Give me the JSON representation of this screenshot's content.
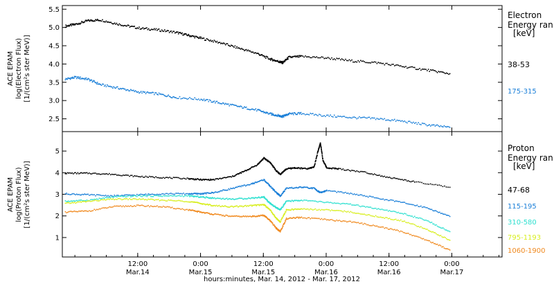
{
  "xaxis": {
    "label": "hours:minutes, Mar. 14, 2012 - Mar. 17, 2012",
    "range": [
      -0.1,
      3.4
    ],
    "ticks": [
      {
        "x": 0.5,
        "time": "12:00",
        "date": "Mar.14"
      },
      {
        "x": 1.0,
        "time": "0:00",
        "date": "Mar.15"
      },
      {
        "x": 1.5,
        "time": "12:00",
        "date": "Mar.15"
      },
      {
        "x": 2.0,
        "time": "0:00",
        "date": "Mar.16"
      },
      {
        "x": 2.5,
        "time": "12:00",
        "date": "Mar.16"
      },
      {
        "x": 3.0,
        "time": "0:00",
        "date": "Mar.17"
      }
    ]
  },
  "chart_data": [
    {
      "type": "scatter",
      "title": "",
      "ylabel_lines": [
        "ACE EPAM",
        "log(Electron Flux)",
        "[1/(cm²s ster MeV)]"
      ],
      "ylim": [
        2.15,
        5.6
      ],
      "yticks": [
        "2.5",
        "3.0",
        "3.5",
        "4.0",
        "4.5",
        "5.0",
        "5.5"
      ],
      "legend": {
        "title_lines": [
          "Electron",
          "Energy ran",
          "[keV]"
        ],
        "placement": "right"
      },
      "series": [
        {
          "name": "38-53",
          "color": "#000000",
          "x": [
            -0.08,
            0.0,
            0.1,
            0.2,
            0.35,
            0.5,
            0.65,
            0.8,
            0.9,
            1.0,
            1.15,
            1.3,
            1.45,
            1.55,
            1.62,
            1.65,
            1.7,
            1.8,
            2.0,
            2.2,
            2.4,
            2.6,
            2.8,
            2.98
          ],
          "values": [
            5.05,
            5.1,
            5.2,
            5.22,
            5.1,
            5.0,
            4.95,
            4.88,
            4.8,
            4.72,
            4.6,
            4.45,
            4.3,
            4.15,
            4.08,
            4.05,
            4.2,
            4.22,
            4.18,
            4.1,
            4.05,
            3.95,
            3.85,
            3.75
          ]
        },
        {
          "name": "175-315",
          "color": "#1a7fd8",
          "x": [
            -0.08,
            0.0,
            0.1,
            0.2,
            0.35,
            0.5,
            0.65,
            0.8,
            1.0,
            1.15,
            1.3,
            1.45,
            1.55,
            1.62,
            1.65,
            1.7,
            1.8,
            2.0,
            2.2,
            2.4,
            2.6,
            2.8,
            2.98
          ],
          "values": [
            3.6,
            3.65,
            3.6,
            3.45,
            3.35,
            3.25,
            3.2,
            3.1,
            3.05,
            2.95,
            2.85,
            2.75,
            2.65,
            2.6,
            2.58,
            2.65,
            2.66,
            2.6,
            2.55,
            2.52,
            2.45,
            2.35,
            2.28
          ]
        }
      ]
    },
    {
      "type": "scatter",
      "title": "",
      "ylabel_lines": [
        "ACE EPAM",
        "log(Proton Flux)",
        "[1/(cm²s ster MeV)]"
      ],
      "ylim": [
        0.1,
        5.9
      ],
      "yticks": [
        "1",
        "2",
        "3",
        "4",
        "5"
      ],
      "legend": {
        "title_lines": [
          "Proton",
          "Energy ran",
          "[keV]"
        ],
        "placement": "right"
      },
      "series": [
        {
          "name": "47-68",
          "color": "#000000",
          "x": [
            -0.08,
            0.1,
            0.3,
            0.5,
            0.7,
            0.9,
            1.0,
            1.1,
            1.25,
            1.35,
            1.45,
            1.5,
            1.55,
            1.6,
            1.63,
            1.68,
            1.75,
            1.85,
            1.9,
            1.93,
            1.95,
            1.97,
            2.0,
            2.1,
            2.3,
            2.5,
            2.7,
            2.98
          ],
          "values": [
            4.0,
            4.0,
            3.95,
            3.85,
            3.8,
            3.75,
            3.7,
            3.7,
            3.85,
            4.1,
            4.4,
            4.7,
            4.5,
            4.1,
            3.95,
            4.2,
            4.25,
            4.2,
            4.3,
            5.0,
            5.4,
            4.6,
            4.25,
            4.2,
            4.05,
            3.8,
            3.6,
            3.35
          ]
        },
        {
          "name": "115-195",
          "color": "#1a7fd8",
          "x": [
            -0.08,
            0.1,
            0.3,
            0.5,
            0.7,
            0.9,
            1.0,
            1.1,
            1.25,
            1.4,
            1.5,
            1.55,
            1.6,
            1.63,
            1.68,
            1.8,
            1.9,
            1.95,
            2.0,
            2.2,
            2.4,
            2.6,
            2.8,
            2.98
          ],
          "values": [
            3.05,
            3.0,
            2.95,
            3.0,
            3.05,
            3.05,
            3.05,
            3.1,
            3.3,
            3.5,
            3.7,
            3.4,
            3.1,
            2.95,
            3.3,
            3.35,
            3.3,
            3.1,
            3.2,
            3.05,
            2.85,
            2.65,
            2.4,
            2.0
          ]
        },
        {
          "name": "310-580",
          "color": "#2fe0d0",
          "x": [
            -0.08,
            0.1,
            0.3,
            0.5,
            0.7,
            0.9,
            1.0,
            1.1,
            1.25,
            1.4,
            1.5,
            1.55,
            1.6,
            1.63,
            1.68,
            1.8,
            2.0,
            2.2,
            2.4,
            2.6,
            2.8,
            2.98
          ],
          "values": [
            2.7,
            2.75,
            2.9,
            2.95,
            2.95,
            2.95,
            2.9,
            2.85,
            2.8,
            2.85,
            2.9,
            2.6,
            2.4,
            2.3,
            2.7,
            2.75,
            2.65,
            2.55,
            2.35,
            2.15,
            1.8,
            1.3
          ]
        },
        {
          "name": "795-1193",
          "color": "#d8ee20",
          "x": [
            -0.08,
            0.1,
            0.3,
            0.5,
            0.7,
            0.9,
            1.0,
            1.1,
            1.25,
            1.4,
            1.5,
            1.55,
            1.6,
            1.63,
            1.68,
            1.8,
            2.0,
            2.2,
            2.4,
            2.6,
            2.8,
            2.98
          ],
          "values": [
            2.6,
            2.7,
            2.8,
            2.8,
            2.75,
            2.7,
            2.6,
            2.5,
            2.45,
            2.5,
            2.55,
            2.3,
            1.9,
            1.75,
            2.3,
            2.35,
            2.3,
            2.2,
            2.0,
            1.8,
            1.4,
            0.9
          ]
        },
        {
          "name": "1060-1900",
          "color": "#f08a20",
          "x": [
            -0.08,
            0.1,
            0.3,
            0.5,
            0.7,
            0.9,
            1.0,
            1.1,
            1.25,
            1.4,
            1.5,
            1.55,
            1.6,
            1.63,
            1.68,
            1.8,
            2.0,
            2.2,
            2.4,
            2.6,
            2.8,
            2.98
          ],
          "values": [
            2.2,
            2.25,
            2.45,
            2.5,
            2.45,
            2.3,
            2.2,
            2.1,
            2.0,
            2.0,
            2.05,
            1.8,
            1.45,
            1.3,
            1.9,
            1.95,
            1.85,
            1.75,
            1.55,
            1.3,
            0.9,
            0.45
          ]
        }
      ]
    }
  ]
}
